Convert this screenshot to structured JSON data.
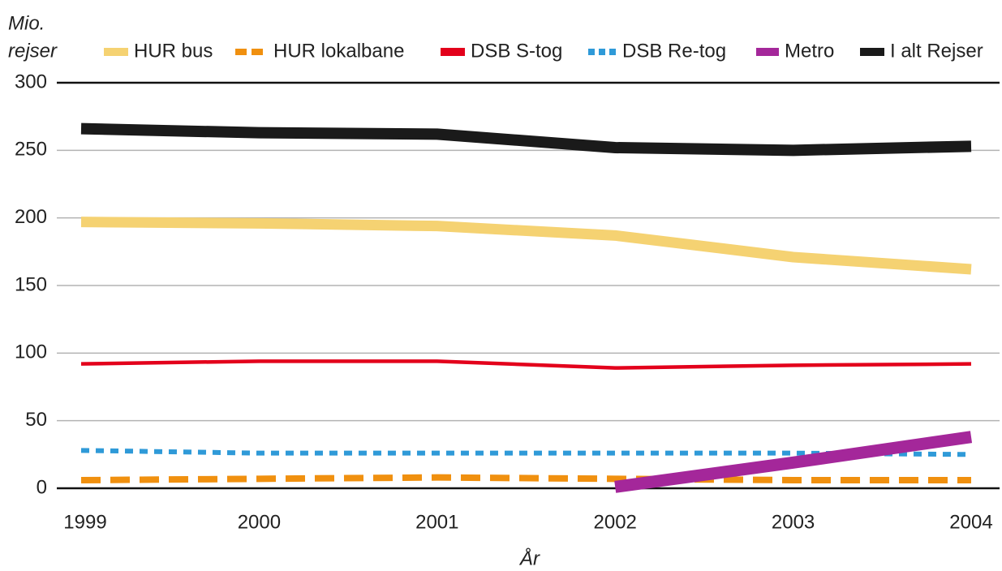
{
  "chart_data": {
    "type": "line",
    "ylabel": [
      "Mio.",
      "rejser"
    ],
    "xlabel": "År",
    "categories": [
      "1999",
      "2000",
      "2001",
      "2002",
      "2003",
      "2004"
    ],
    "series": [
      {
        "name": "HUR bus",
        "color": "#f5d272",
        "values": [
          197,
          196,
          194,
          187,
          171,
          162
        ]
      },
      {
        "name": "HUR lokalbane",
        "color": "#f0900f",
        "style": "dashed",
        "values": [
          6,
          7,
          8,
          7,
          6,
          6
        ]
      },
      {
        "name": "DSB S-tog",
        "color": "#e3001b",
        "values": [
          92,
          94,
          94,
          89,
          91,
          92
        ]
      },
      {
        "name": "DSB Re-tog",
        "color": "#2f9ad8",
        "style": "dotted",
        "values": [
          28,
          26,
          26,
          26,
          26,
          25
        ]
      },
      {
        "name": "Metro",
        "color": "#a4279a",
        "values": [
          null,
          null,
          null,
          1,
          19,
          38
        ]
      },
      {
        "name": "I alt Rejser",
        "color": "#1a1a1a",
        "values": [
          266,
          263,
          262,
          252,
          250,
          253
        ]
      }
    ],
    "ylim": [
      0,
      300
    ],
    "yticks": [
      0,
      50,
      100,
      150,
      200,
      250,
      300
    ],
    "grid": true
  }
}
